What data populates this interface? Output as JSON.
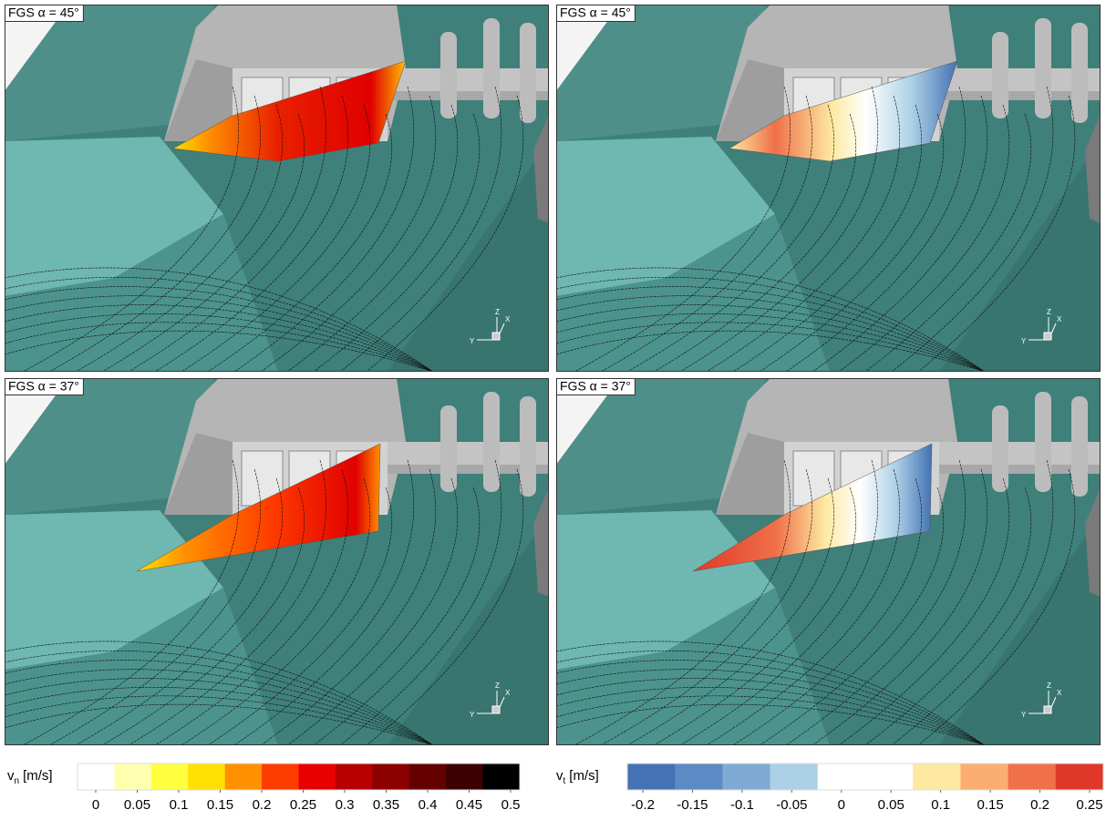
{
  "panels": [
    {
      "label": "FGS α = 45°"
    },
    {
      "label": "FGS α = 45°"
    },
    {
      "label": "FGS α = 37°"
    },
    {
      "label": "FGS α = 37°"
    }
  ],
  "triad": {
    "z": "Z",
    "x": "X",
    "y": "Y"
  },
  "colorbars": [
    {
      "symbol": "v",
      "subscript": "n",
      "unit": "[m/s]",
      "ticks": [
        0,
        0.05,
        0.1,
        0.15,
        0.2,
        0.25,
        0.3,
        0.35,
        0.4,
        0.45,
        0.5
      ],
      "colors": [
        "#ffffff",
        "#ffffb0",
        "#ffff40",
        "#ffe000",
        "#ff9000",
        "#ff3c00",
        "#e80000",
        "#b80000",
        "#8c0000",
        "#640000",
        "#3c0000",
        "#000000"
      ]
    },
    {
      "symbol": "v",
      "subscript": "t",
      "unit": "[m/s]",
      "ticks": [
        -0.2,
        -0.15,
        -0.1,
        -0.05,
        0,
        0.05,
        0.1,
        0.15,
        0.2,
        0.25
      ],
      "colors": [
        "#4472b4",
        "#5b8ac4",
        "#7eaad4",
        "#acd0e6",
        "#ffffff",
        "#ffffff",
        "#fde9a0",
        "#fcae70",
        "#f07048",
        "#e03828"
      ]
    }
  ]
}
